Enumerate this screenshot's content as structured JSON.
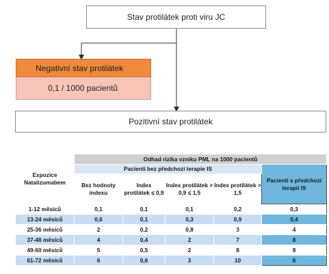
{
  "diagram": {
    "top_label": "Stav protilátek proti viru JC",
    "negative_label": "Negativní stav protilátek",
    "negative_value": "0,1 / 1000 pacientů",
    "positive_label": "Pozitivní stav protilátek"
  },
  "table": {
    "title": "Odhad rizika vzniku PML na 1000 pacientů",
    "exposure_header": "Expozice Natalizumabem",
    "no_prior_header": "Pacienti bez předchozí terapie IS",
    "prior_header": "Pacienti s předchozí terapií IS",
    "columns": [
      "Bez hodnoty indexu",
      "Index protilátek ≤ 0,9",
      "Index protilátek > 0,9 ≤ 1,5",
      "Index protilátek > 1,5"
    ],
    "rows": [
      {
        "exposure": "1-12 měsíců",
        "values": [
          "0,1",
          "0,1",
          "0,1",
          "0,2"
        ],
        "prior": "0,3"
      },
      {
        "exposure": "13-24 měsíců",
        "values": [
          "0,6",
          "0,1",
          "0,3",
          "0,9"
        ],
        "prior": "0,4"
      },
      {
        "exposure": "25-36 měsíců",
        "values": [
          "2",
          "0,2",
          "0,8",
          "3"
        ],
        "prior": "4"
      },
      {
        "exposure": "37-48 měsíců",
        "values": [
          "4",
          "0,4",
          "2",
          "7"
        ],
        "prior": "8"
      },
      {
        "exposure": "49-60 měsíců",
        "values": [
          "5",
          "0,5",
          "2",
          "8"
        ],
        "prior": "8"
      },
      {
        "exposure": "61-72 měsíců",
        "values": [
          "6",
          "0,6",
          "3",
          "10"
        ],
        "prior": "6"
      }
    ]
  },
  "colors": {
    "negative_header": "#f08a3c",
    "negative_value": "#f8c4b8",
    "table_highlight": "#6fb7dd",
    "table_alt_row": "#c6ddf2"
  }
}
